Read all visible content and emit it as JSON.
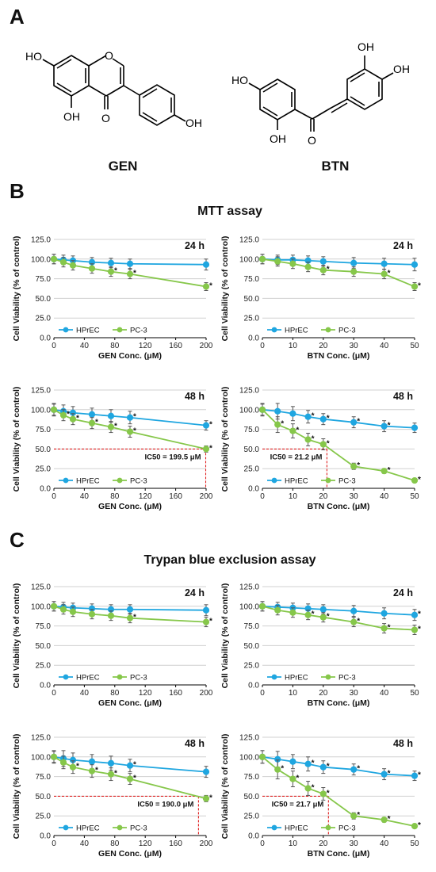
{
  "panels": {
    "A": "A",
    "B": "B",
    "C": "C"
  },
  "structures": {
    "gen": {
      "name": "GEN",
      "atoms": [
        "HO",
        "O",
        "OH",
        "O",
        "OH"
      ]
    },
    "btn": {
      "name": "BTN",
      "atoms": [
        "HO",
        "OH",
        "O",
        "OH",
        "OH"
      ]
    }
  },
  "sections": {
    "mtt_title": "MTT assay",
    "trypan_title": "Trypan blue exclusion assay"
  },
  "colors": {
    "hprec": "#1fa6e0",
    "pc3": "#86c74a",
    "ic50_line": "#e02020",
    "axis": "#000000",
    "grid": "#d0d0d0"
  },
  "chart_data": [
    {
      "type": "line",
      "title": "24 h",
      "xlabel": "GEN Conc. (μM)",
      "ylabel": "Cell Viability (% of control)",
      "xlim": [
        0,
        200
      ],
      "xticks": [
        0,
        40,
        80,
        120,
        160,
        200
      ],
      "ylim": [
        0,
        125
      ],
      "yticks": [
        "0.0",
        "25.0",
        "50.0",
        "75.0",
        "100.0",
        "125.0"
      ],
      "grid": true,
      "legend": "bottom-left",
      "x": [
        0,
        12.5,
        25,
        50,
        75,
        100,
        200
      ],
      "series": [
        {
          "name": "HPrEC",
          "values": [
            100,
            99,
            98,
            96,
            95,
            94,
            93
          ],
          "err": [
            6,
            6,
            6,
            6,
            6,
            6,
            7
          ],
          "stars": []
        },
        {
          "name": "PC-3",
          "values": [
            100,
            96,
            92,
            88,
            84,
            81,
            65
          ],
          "err": [
            6,
            6,
            6,
            6,
            6,
            6,
            5
          ],
          "stars": [
            75,
            100,
            200
          ]
        }
      ]
    },
    {
      "type": "line",
      "title": "24 h",
      "xlabel": "BTN Conc. (μM)",
      "ylabel": "Cell Viability (% of control)",
      "xlim": [
        0,
        50
      ],
      "xticks": [
        0,
        10,
        20,
        30,
        40,
        50
      ],
      "ylim": [
        0,
        125
      ],
      "yticks": [
        "0.0",
        "25.0",
        "50.0",
        "75.0",
        "100.0",
        "125.0"
      ],
      "grid": true,
      "legend": "bottom-left",
      "x": [
        0,
        5,
        10,
        15,
        20,
        30,
        40,
        50
      ],
      "series": [
        {
          "name": "HPrEC",
          "values": [
            100,
            99,
            99,
            98,
            97,
            95,
            94,
            93
          ],
          "err": [
            6,
            6,
            6,
            6,
            6,
            7,
            7,
            8
          ],
          "stars": []
        },
        {
          "name": "PC-3",
          "values": [
            100,
            97,
            94,
            90,
            86,
            84,
            81,
            65
          ],
          "err": [
            6,
            6,
            6,
            6,
            6,
            6,
            6,
            5
          ],
          "stars": [
            20,
            40,
            50
          ]
        }
      ]
    },
    {
      "type": "line",
      "title": "48 h",
      "xlabel": "GEN Conc. (μM)",
      "ylabel": "Cell Viability (% of control)",
      "xlim": [
        0,
        200
      ],
      "xticks": [
        0,
        40,
        80,
        120,
        160,
        200
      ],
      "ylim": [
        0,
        125
      ],
      "yticks": [
        "0.0",
        "25.0",
        "50.0",
        "75.0",
        "100.0",
        "125.0"
      ],
      "grid": true,
      "legend": "bottom-left",
      "x": [
        0,
        12.5,
        25,
        50,
        75,
        100,
        200
      ],
      "series": [
        {
          "name": "HPrEC",
          "values": [
            100,
            98,
            96,
            94,
            92,
            90,
            80
          ],
          "err": [
            8,
            8,
            8,
            8,
            8,
            8,
            6
          ],
          "stars": [
            100,
            200
          ]
        },
        {
          "name": "PC-3",
          "values": [
            100,
            93,
            88,
            83,
            78,
            72,
            50
          ],
          "err": [
            7,
            7,
            7,
            7,
            7,
            7,
            4
          ],
          "stars": [
            12.5,
            25,
            50,
            75,
            100,
            200
          ]
        }
      ],
      "ic50": {
        "x": 199.5,
        "y": 50,
        "label": "IC50 = 199.5 μM"
      }
    },
    {
      "type": "line",
      "title": "48 h",
      "xlabel": "BTN Conc. (μM)",
      "ylabel": "Cell Viability (% of control)",
      "xlim": [
        0,
        50
      ],
      "xticks": [
        0,
        10,
        20,
        30,
        40,
        50
      ],
      "ylim": [
        0,
        125
      ],
      "yticks": [
        "0.0",
        "25.0",
        "50.0",
        "75.0",
        "100.0",
        "125.0"
      ],
      "grid": true,
      "legend": "bottom-left",
      "x": [
        0,
        5,
        10,
        15,
        20,
        30,
        40,
        50
      ],
      "series": [
        {
          "name": "HPrEC",
          "values": [
            100,
            98,
            95,
            91,
            88,
            84,
            79,
            77
          ],
          "err": [
            7,
            10,
            9,
            8,
            7,
            7,
            7,
            6
          ],
          "stars": [
            15,
            20,
            30,
            40
          ]
        },
        {
          "name": "PC-3",
          "values": [
            100,
            81,
            73,
            62,
            56,
            28,
            22,
            10
          ],
          "err": [
            8,
            10,
            9,
            8,
            7,
            4,
            3,
            2
          ],
          "stars": [
            5,
            10,
            15,
            20,
            30,
            40,
            50
          ]
        }
      ],
      "ic50": {
        "x": 21.2,
        "y": 50,
        "label": "IC50 = 21.2 μM"
      }
    },
    {
      "type": "line",
      "title": "24 h",
      "xlabel": "GEN Conc. (μM)",
      "ylabel": "Cell Viability (% of control)",
      "xlim": [
        0,
        200
      ],
      "xticks": [
        0,
        40,
        80,
        120,
        160,
        200
      ],
      "ylim": [
        0,
        125
      ],
      "yticks": [
        "0.0",
        "25.0",
        "50.0",
        "75.0",
        "100.0",
        "125.0"
      ],
      "grid": true,
      "legend": "bottom-left",
      "x": [
        0,
        12.5,
        25,
        50,
        75,
        100,
        200
      ],
      "series": [
        {
          "name": "HPrEC",
          "values": [
            100,
            99,
            98,
            97,
            96,
            96,
            95
          ],
          "err": [
            6,
            6,
            6,
            6,
            6,
            6,
            7
          ],
          "stars": []
        },
        {
          "name": "PC-3",
          "values": [
            100,
            96,
            93,
            90,
            88,
            85,
            80
          ],
          "err": [
            6,
            6,
            6,
            6,
            6,
            6,
            6
          ],
          "stars": [
            100,
            200
          ]
        }
      ]
    },
    {
      "type": "line",
      "title": "24 h",
      "xlabel": "BTN Conc. (μM)",
      "ylabel": "Cell Viability (% of control)",
      "xlim": [
        0,
        50
      ],
      "xticks": [
        0,
        10,
        20,
        30,
        40,
        50
      ],
      "ylim": [
        0,
        125
      ],
      "yticks": [
        "0.0",
        "25.0",
        "50.0",
        "75.0",
        "100.0",
        "125.0"
      ],
      "grid": true,
      "legend": "bottom-left",
      "x": [
        0,
        5,
        10,
        15,
        20,
        30,
        40,
        50
      ],
      "series": [
        {
          "name": "HPrEC",
          "values": [
            100,
            99,
            98,
            97,
            96,
            94,
            91,
            89
          ],
          "err": [
            6,
            6,
            6,
            6,
            6,
            7,
            7,
            7
          ],
          "stars": [
            50
          ]
        },
        {
          "name": "PC-3",
          "values": [
            100,
            95,
            92,
            89,
            86,
            80,
            72,
            70
          ],
          "err": [
            6,
            6,
            6,
            6,
            6,
            6,
            6,
            6
          ],
          "stars": [
            15,
            20,
            30,
            40,
            50
          ]
        }
      ]
    },
    {
      "type": "line",
      "title": "48 h",
      "xlabel": "GEN Conc. (μM)",
      "ylabel": "Cell Viability (% of control)",
      "xlim": [
        0,
        200
      ],
      "xticks": [
        0,
        40,
        80,
        120,
        160,
        200
      ],
      "ylim": [
        0,
        125
      ],
      "yticks": [
        "0.0",
        "25.0",
        "50.0",
        "75.0",
        "100.0",
        "125.0"
      ],
      "grid": true,
      "legend": "bottom-left",
      "x": [
        0,
        12.5,
        25,
        50,
        75,
        100,
        200
      ],
      "series": [
        {
          "name": "HPrEC",
          "values": [
            100,
            98,
            96,
            94,
            92,
            89,
            81
          ],
          "err": [
            8,
            10,
            9,
            9,
            9,
            8,
            7
          ],
          "stars": [
            100
          ]
        },
        {
          "name": "PC-3",
          "values": [
            100,
            93,
            87,
            82,
            78,
            72,
            47
          ],
          "err": [
            7,
            8,
            8,
            8,
            8,
            7,
            4
          ],
          "stars": [
            25,
            50,
            75,
            100,
            200
          ]
        }
      ],
      "ic50": {
        "x": 190.0,
        "y": 50,
        "label": "IC50 = 190.0 μM"
      }
    },
    {
      "type": "line",
      "title": "48 h",
      "xlabel": "BTN Conc. (μM)",
      "ylabel": "Cell Viability (% of control)",
      "xlim": [
        0,
        50
      ],
      "xticks": [
        0,
        10,
        20,
        30,
        40,
        50
      ],
      "ylim": [
        0,
        125
      ],
      "yticks": [
        "0.0",
        "25.0",
        "50.0",
        "75.0",
        "100.0",
        "125.0"
      ],
      "grid": true,
      "legend": "bottom-left",
      "x": [
        0,
        5,
        10,
        15,
        20,
        30,
        40,
        50
      ],
      "series": [
        {
          "name": "HPrEC",
          "values": [
            100,
            97,
            94,
            91,
            87,
            84,
            78,
            76
          ],
          "err": [
            8,
            10,
            9,
            9,
            8,
            7,
            7,
            6
          ],
          "stars": [
            15,
            20,
            30,
            40,
            50
          ]
        },
        {
          "name": "PC-3",
          "values": [
            100,
            84,
            72,
            60,
            53,
            25,
            20,
            12
          ],
          "err": [
            8,
            12,
            10,
            9,
            8,
            4,
            3,
            2
          ],
          "stars": [
            5,
            10,
            15,
            20,
            30,
            40,
            50
          ]
        }
      ],
      "ic50": {
        "x": 21.7,
        "y": 50,
        "label": "IC50 = 21.7 μM"
      }
    }
  ]
}
